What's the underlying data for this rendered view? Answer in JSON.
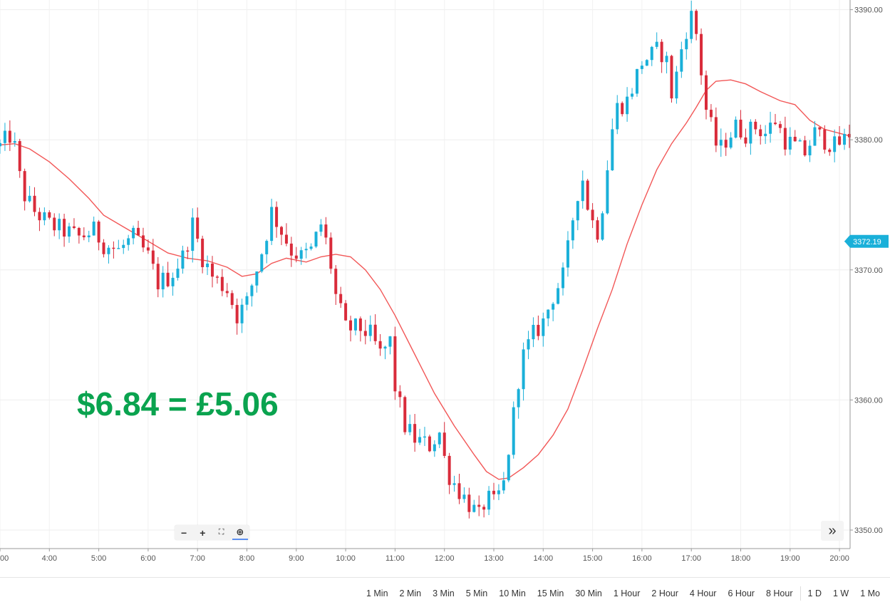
{
  "chart_data": {
    "type": "candlestick",
    "y_axis": {
      "ylim": [
        3349,
        3392
      ],
      "ticks": [
        3350,
        3360,
        3370,
        3380,
        3390
      ],
      "tick_labels": [
        "3350.00",
        "3360.00",
        "3370.00",
        "3380.00",
        "3390.00"
      ],
      "position": "right"
    },
    "x_axis": {
      "xlim": [
        3.0,
        20.2
      ],
      "ticks": [
        3,
        4,
        5,
        6,
        7,
        8,
        9,
        10,
        11,
        12,
        13,
        14,
        15,
        16,
        17,
        18,
        19,
        20
      ],
      "tick_labels": [
        "00",
        "4:00",
        "5:00",
        "6:00",
        "7:00",
        "8:00",
        "9:00",
        "10:00",
        "11:00",
        "12:00",
        "13:00",
        "14:00",
        "15:00",
        "16:00",
        "17:00",
        "18:00",
        "19:00",
        "20:00"
      ]
    },
    "grid": true,
    "current_price": 3372.19,
    "current_price_label": "3372.19",
    "up_color": "#1ab0d9",
    "down_color": "#d92b3a",
    "ma_color": "#f25757",
    "price_path": [
      [
        3.0,
        3379.5
      ],
      [
        3.25,
        3380.5
      ],
      [
        3.45,
        3376.0
      ],
      [
        3.7,
        3374.5
      ],
      [
        4.0,
        3373.5
      ],
      [
        4.3,
        3373.0
      ],
      [
        4.6,
        3372.5
      ],
      [
        4.9,
        3373.0
      ],
      [
        5.1,
        3372.0
      ],
      [
        5.4,
        3371.5
      ],
      [
        5.7,
        3372.5
      ],
      [
        6.0,
        3371.0
      ],
      [
        6.2,
        3369.0
      ],
      [
        6.45,
        3369.5
      ],
      [
        6.7,
        3371.0
      ],
      [
        6.9,
        3373.5
      ],
      [
        7.1,
        3371.0
      ],
      [
        7.3,
        3369.5
      ],
      [
        7.6,
        3368.5
      ],
      [
        7.8,
        3366.5
      ],
      [
        8.0,
        3367.5
      ],
      [
        8.15,
        3369.5
      ],
      [
        8.35,
        3372.0
      ],
      [
        8.5,
        3374.5
      ],
      [
        8.7,
        3373.0
      ],
      [
        8.9,
        3371.5
      ],
      [
        9.1,
        3371.0
      ],
      [
        9.3,
        3371.5
      ],
      [
        9.5,
        3373.5
      ],
      [
        9.65,
        3371.5
      ],
      [
        9.8,
        3368.0
      ],
      [
        10.0,
        3365.5
      ],
      [
        10.3,
        3365.5
      ],
      [
        10.5,
        3365.0
      ],
      [
        10.7,
        3363.5
      ],
      [
        10.9,
        3364.5
      ],
      [
        11.0,
        3361.0
      ],
      [
        11.2,
        3358.0
      ],
      [
        11.4,
        3357.0
      ],
      [
        11.7,
        3356.5
      ],
      [
        11.9,
        3357.5
      ],
      [
        12.05,
        3354.5
      ],
      [
        12.3,
        3353.0
      ],
      [
        12.5,
        3352.0
      ],
      [
        12.7,
        3351.0
      ],
      [
        12.85,
        3352.5
      ],
      [
        13.0,
        3352.0
      ],
      [
        13.2,
        3353.5
      ],
      [
        13.35,
        3357.5
      ],
      [
        13.55,
        3363.0
      ],
      [
        13.8,
        3365.0
      ],
      [
        14.0,
        3366.0
      ],
      [
        14.2,
        3368.0
      ],
      [
        14.4,
        3369.5
      ],
      [
        14.55,
        3372.5
      ],
      [
        14.65,
        3375.5
      ],
      [
        14.8,
        3377.0
      ],
      [
        14.95,
        3374.0
      ],
      [
        15.1,
        3373.0
      ],
      [
        15.25,
        3376.0
      ],
      [
        15.35,
        3380.0
      ],
      [
        15.5,
        3382.5
      ],
      [
        15.7,
        3383.0
      ],
      [
        15.85,
        3384.5
      ],
      [
        16.0,
        3386.0
      ],
      [
        16.2,
        3386.5
      ],
      [
        16.35,
        3387.0
      ],
      [
        16.5,
        3386.0
      ],
      [
        16.6,
        3383.5
      ],
      [
        16.7,
        3385.0
      ],
      [
        16.85,
        3388.0
      ],
      [
        17.0,
        3389.5
      ],
      [
        17.15,
        3387.5
      ],
      [
        17.25,
        3383.0
      ],
      [
        17.4,
        3381.0
      ],
      [
        17.55,
        3379.0
      ],
      [
        17.7,
        3380.0
      ],
      [
        17.9,
        3381.0
      ],
      [
        18.1,
        3380.5
      ],
      [
        18.3,
        3381.0
      ],
      [
        18.5,
        3380.5
      ],
      [
        18.7,
        3381.5
      ],
      [
        18.9,
        3380.0
      ],
      [
        19.1,
        3379.5
      ],
      [
        19.3,
        3379.0
      ],
      [
        19.5,
        3380.5
      ],
      [
        19.7,
        3380.0
      ],
      [
        19.9,
        3379.5
      ],
      [
        20.1,
        3380.0
      ],
      [
        20.2,
        3380.5
      ]
    ],
    "moving_average": [
      [
        3.0,
        3379.6
      ],
      [
        3.3,
        3379.7
      ],
      [
        3.6,
        3379.3
      ],
      [
        4.0,
        3378.3
      ],
      [
        4.4,
        3377.0
      ],
      [
        4.8,
        3375.5
      ],
      [
        5.1,
        3374.2
      ],
      [
        5.5,
        3373.3
      ],
      [
        6.0,
        3372.2
      ],
      [
        6.4,
        3371.3
      ],
      [
        6.8,
        3370.9
      ],
      [
        7.2,
        3370.7
      ],
      [
        7.6,
        3370.2
      ],
      [
        7.9,
        3369.5
      ],
      [
        8.2,
        3369.7
      ],
      [
        8.5,
        3370.5
      ],
      [
        8.8,
        3370.9
      ],
      [
        9.2,
        3370.6
      ],
      [
        9.5,
        3371.0
      ],
      [
        9.8,
        3371.2
      ],
      [
        10.1,
        3371.0
      ],
      [
        10.4,
        3370.0
      ],
      [
        10.7,
        3368.5
      ],
      [
        11.0,
        3366.5
      ],
      [
        11.4,
        3363.5
      ],
      [
        11.8,
        3360.5
      ],
      [
        12.2,
        3358.0
      ],
      [
        12.6,
        3355.8
      ],
      [
        12.85,
        3354.5
      ],
      [
        13.1,
        3353.9
      ],
      [
        13.3,
        3354.0
      ],
      [
        13.6,
        3354.8
      ],
      [
        13.9,
        3355.8
      ],
      [
        14.2,
        3357.3
      ],
      [
        14.5,
        3359.3
      ],
      [
        14.8,
        3362.3
      ],
      [
        15.1,
        3365.5
      ],
      [
        15.4,
        3368.5
      ],
      [
        15.7,
        3372.0
      ],
      [
        16.0,
        3375.0
      ],
      [
        16.3,
        3377.7
      ],
      [
        16.6,
        3379.7
      ],
      [
        16.9,
        3381.3
      ],
      [
        17.1,
        3382.5
      ],
      [
        17.3,
        3383.8
      ],
      [
        17.5,
        3384.5
      ],
      [
        17.8,
        3384.6
      ],
      [
        18.1,
        3384.3
      ],
      [
        18.4,
        3383.7
      ],
      [
        18.8,
        3383.0
      ],
      [
        19.1,
        3382.7
      ],
      [
        19.4,
        3381.5
      ],
      [
        19.7,
        3380.8
      ],
      [
        20.0,
        3380.5
      ],
      [
        20.2,
        3380.3
      ]
    ]
  },
  "overlay": {
    "text": "$6.84 = £5.06",
    "color": "#0aa34f"
  },
  "zoom_toolbar": {
    "zoom_out": "−",
    "zoom_in": "+",
    "fit": "⛶",
    "reset": "⊕"
  },
  "scroll_button": "»",
  "intervals": {
    "intraday": [
      "1 Min",
      "2 Min",
      "3 Min",
      "5 Min",
      "10 Min",
      "15 Min",
      "30 Min",
      "1 Hour",
      "2 Hour",
      "4 Hour",
      "6 Hour",
      "8 Hour"
    ],
    "daily": [
      "1 D",
      "1 W",
      "1 Mo"
    ]
  }
}
